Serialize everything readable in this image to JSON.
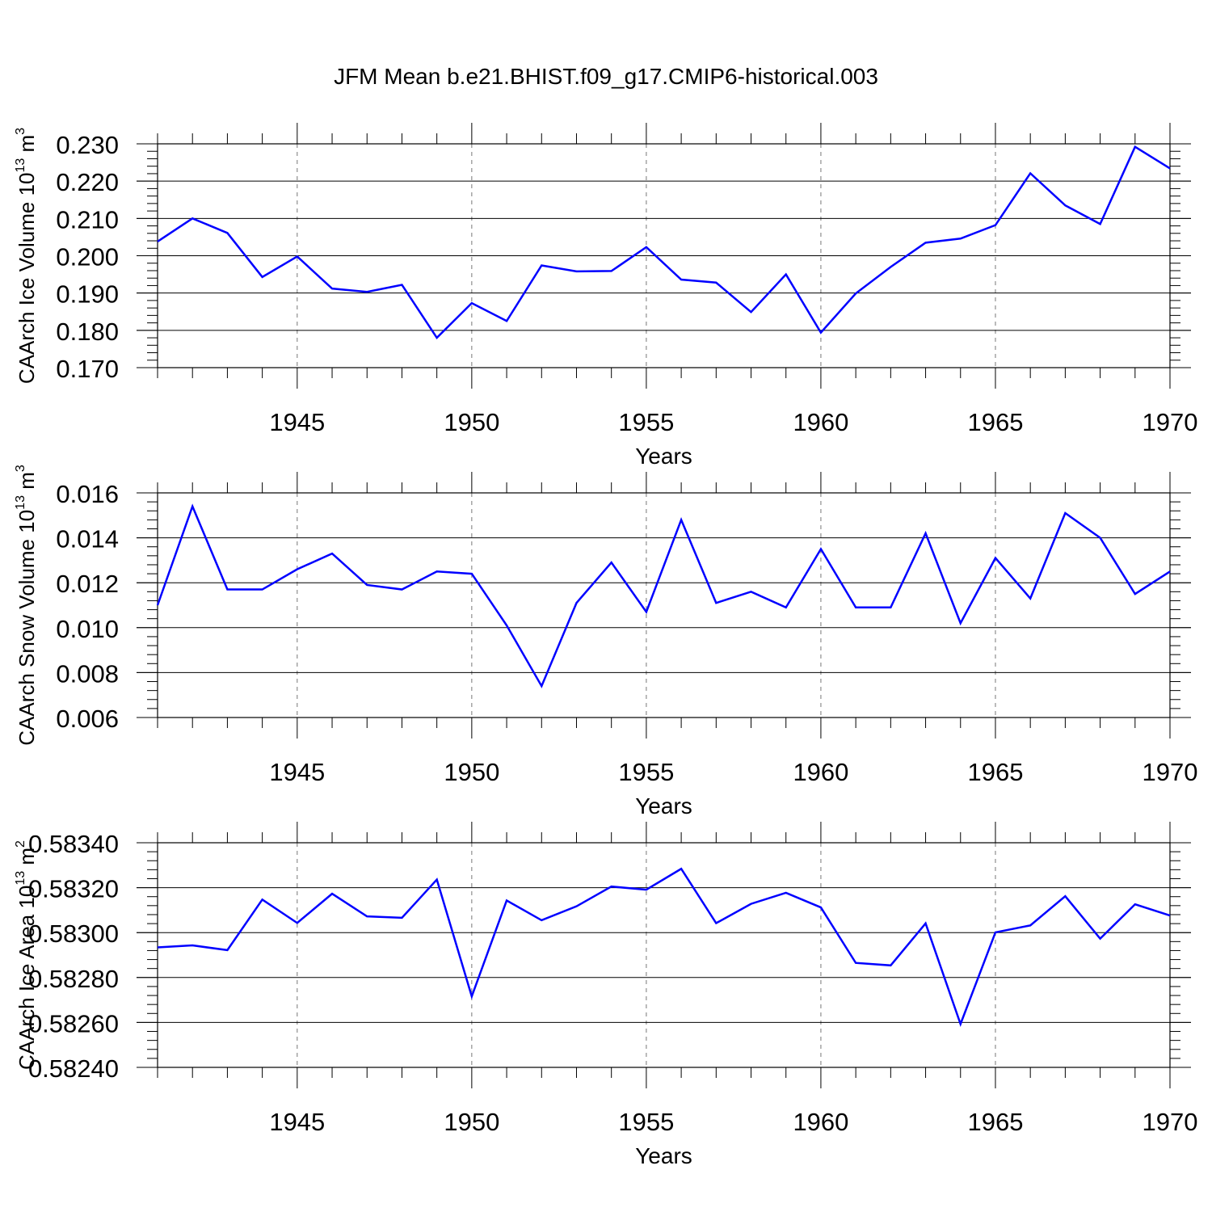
{
  "title": "JFM Mean b.e21.BHIST.f09_g17.CMIP6-historical.003",
  "line_color": "#0000FF",
  "chart_data": [
    {
      "type": "line",
      "ylabel": "CAArch Ice Volume 10",
      "ylabel_exp": "13",
      "ylabel_unit": " m",
      "ylabel_unit_exp": "3",
      "xlabel": "Years",
      "xlim": [
        1941,
        1970
      ],
      "ylim": [
        0.17,
        0.23
      ],
      "yticks": [
        0.17,
        0.18,
        0.19,
        0.2,
        0.21,
        0.22,
        0.23
      ],
      "ytick_labels": [
        "0.170",
        "0.180",
        "0.190",
        "0.200",
        "0.210",
        "0.220",
        "0.230"
      ],
      "xticks": [
        1945,
        1950,
        1955,
        1960,
        1965,
        1970
      ],
      "xtick_labels": [
        "1945",
        "1950",
        "1955",
        "1960",
        "1965",
        "1970"
      ],
      "x": [
        1941,
        1942,
        1943,
        1944,
        1945,
        1946,
        1947,
        1948,
        1949,
        1950,
        1951,
        1952,
        1953,
        1954,
        1955,
        1956,
        1957,
        1958,
        1959,
        1960,
        1961,
        1962,
        1963,
        1964,
        1965,
        1966,
        1967,
        1968,
        1969,
        1970
      ],
      "values": [
        0.2038,
        0.21,
        0.2061,
        0.1943,
        0.1998,
        0.1912,
        0.1903,
        0.1922,
        0.178,
        0.1873,
        0.1825,
        0.1974,
        0.1958,
        0.1959,
        0.2023,
        0.1936,
        0.1928,
        0.1849,
        0.195,
        0.1794,
        0.1899,
        0.197,
        0.2035,
        0.2046,
        0.2082,
        0.2221,
        0.2135,
        0.2085,
        0.2292,
        0.2234
      ]
    },
    {
      "type": "line",
      "ylabel": "CAArch Snow Volume 10",
      "ylabel_exp": "13",
      "ylabel_unit": " m",
      "ylabel_unit_exp": "3",
      "xlabel": "Years",
      "xlim": [
        1941,
        1970
      ],
      "ylim": [
        0.006,
        0.016
      ],
      "yticks": [
        0.006,
        0.008,
        0.01,
        0.012,
        0.014,
        0.016
      ],
      "ytick_labels": [
        "0.006",
        "0.008",
        "0.010",
        "0.012",
        "0.014",
        "0.016"
      ],
      "xticks": [
        1945,
        1950,
        1955,
        1960,
        1965,
        1970
      ],
      "xtick_labels": [
        "1945",
        "1950",
        "1955",
        "1960",
        "1965",
        "1970"
      ],
      "x": [
        1941,
        1942,
        1943,
        1944,
        1945,
        1946,
        1947,
        1948,
        1949,
        1950,
        1951,
        1952,
        1953,
        1954,
        1955,
        1956,
        1957,
        1958,
        1959,
        1960,
        1961,
        1962,
        1963,
        1964,
        1965,
        1966,
        1967,
        1968,
        1969,
        1970
      ],
      "values": [
        0.011,
        0.0154,
        0.0117,
        0.0117,
        0.0126,
        0.0133,
        0.0119,
        0.0117,
        0.0125,
        0.0124,
        0.0101,
        0.0074,
        0.0111,
        0.0129,
        0.0107,
        0.0148,
        0.0111,
        0.0116,
        0.0109,
        0.0135,
        0.0109,
        0.0109,
        0.0142,
        0.0102,
        0.0131,
        0.0113,
        0.0151,
        0.014,
        0.0115,
        0.0125
      ]
    },
    {
      "type": "line",
      "ylabel": "CAArch Ice Area 10",
      "ylabel_exp": "13",
      "ylabel_unit": " m",
      "ylabel_unit_exp": "2",
      "xlabel": "Years",
      "xlim": [
        1941,
        1970
      ],
      "ylim": [
        0.5824,
        0.5834
      ],
      "yticks": [
        0.5824,
        0.5826,
        0.5828,
        0.583,
        0.5832,
        0.5834
      ],
      "ytick_labels": [
        "0.58240",
        "0.58260",
        "0.58280",
        "0.58300",
        "0.58320",
        "0.58340"
      ],
      "xticks": [
        1945,
        1950,
        1955,
        1960,
        1965,
        1970
      ],
      "xtick_labels": [
        "1945",
        "1950",
        "1955",
        "1960",
        "1965",
        "1970"
      ],
      "x": [
        1941,
        1942,
        1943,
        1944,
        1945,
        1946,
        1947,
        1948,
        1949,
        1950,
        1951,
        1952,
        1953,
        1954,
        1955,
        1956,
        1957,
        1958,
        1959,
        1960,
        1961,
        1962,
        1963,
        1964,
        1965,
        1966,
        1967,
        1968,
        1969,
        1970
      ],
      "values": [
        0.582934,
        0.582943,
        0.582922,
        0.583147,
        0.583043,
        0.583173,
        0.583072,
        0.583066,
        0.583236,
        0.582716,
        0.583143,
        0.583055,
        0.583117,
        0.583205,
        0.583191,
        0.583284,
        0.583042,
        0.583128,
        0.583177,
        0.583112,
        0.582865,
        0.582854,
        0.583041,
        0.582593,
        0.583001,
        0.583032,
        0.583162,
        0.582973,
        0.583126,
        0.583076
      ]
    }
  ]
}
